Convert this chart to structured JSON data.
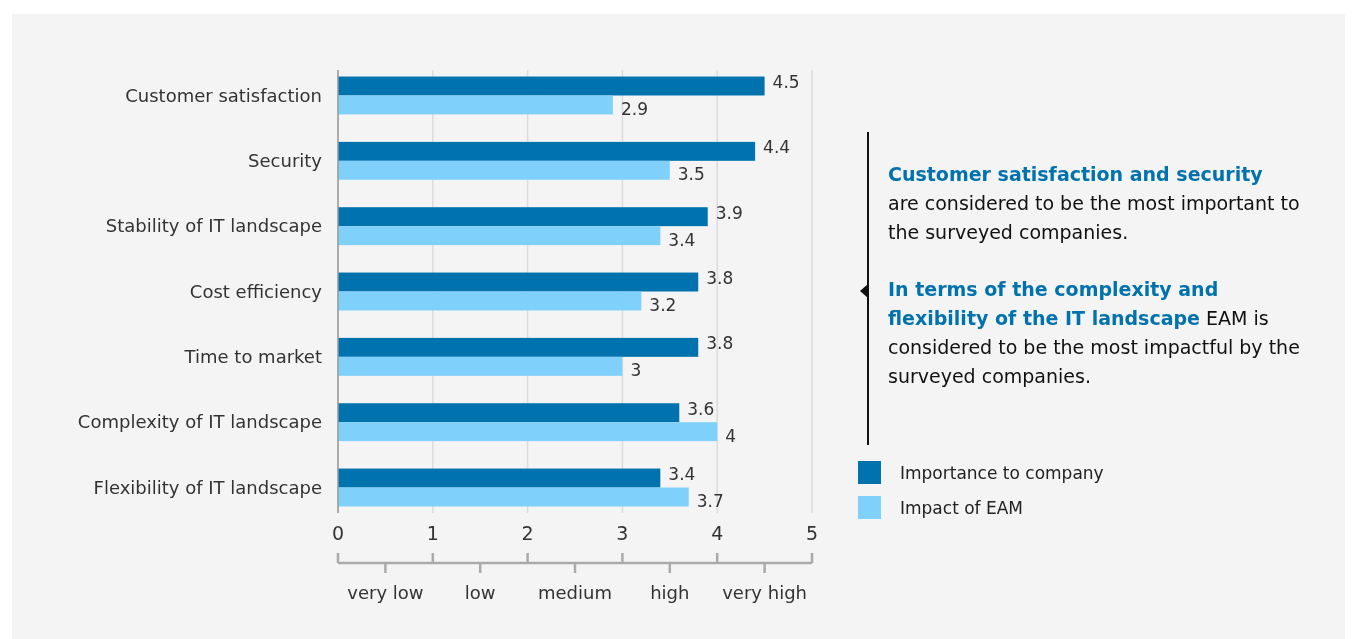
{
  "chart_data": {
    "type": "bar",
    "orientation": "horizontal",
    "categories": [
      "Customer satisfaction",
      "Security",
      "Stability of IT landscape",
      "Cost efficiency",
      "Time to market",
      "Complexity of IT landscape",
      "Flexibility of IT landscape"
    ],
    "series": [
      {
        "name": "Importance to company",
        "color": "#0072ae",
        "values": [
          4.5,
          4.4,
          3.9,
          3.8,
          3.8,
          3.6,
          3.4
        ]
      },
      {
        "name": "Impact of EAM",
        "color": "#7fd1fb",
        "values": [
          2.9,
          3.5,
          3.4,
          3.2,
          3,
          4,
          3.7
        ]
      }
    ],
    "xlim": [
      0,
      5
    ],
    "xticks": [
      0,
      1,
      2,
      3,
      4,
      5
    ],
    "data_labels": true,
    "grid": "x",
    "legend": "right",
    "annotations": [
      "very low",
      "low",
      "medium",
      "high",
      "very high",
      "Customer satisfaction and security",
      "are considered to be the most important to the surveyed companies.",
      "In terms of the complexity and flexibility of the IT landscape",
      "EAM is considered to be the most impactful by the surveyed companies."
    ]
  }
}
